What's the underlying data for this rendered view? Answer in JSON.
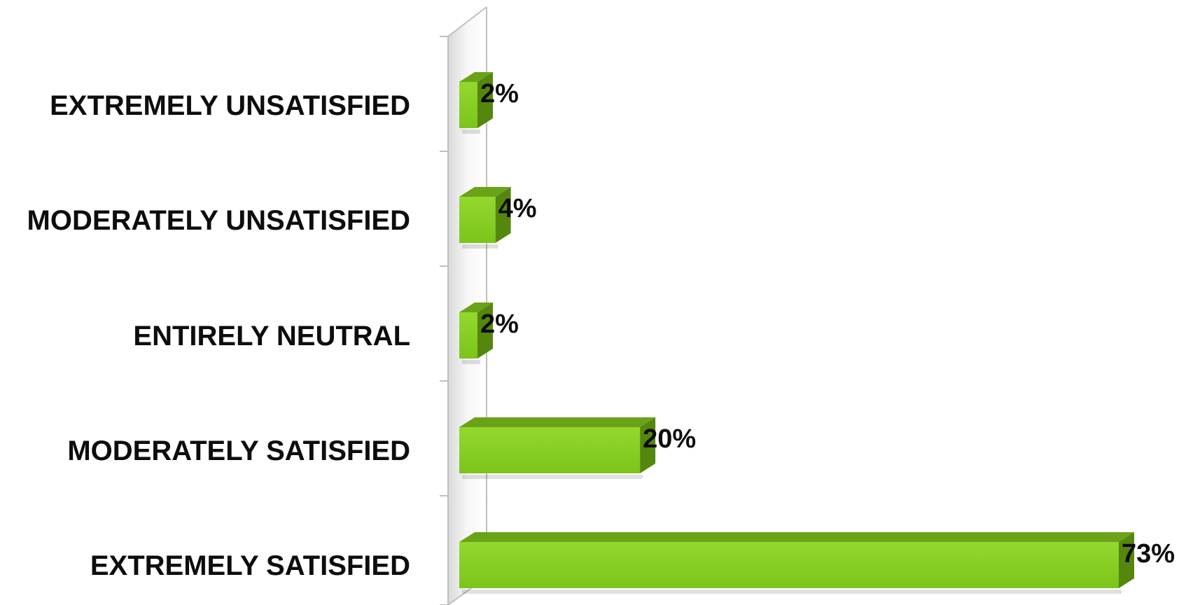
{
  "chart_data": {
    "type": "bar",
    "orientation": "horizontal",
    "style": "3d",
    "categories": [
      "EXTREMELY UNSATISFIED",
      "MODERATELY UNSATISFIED",
      "ENTIRELY NEUTRAL",
      "MODERATELY SATISFIED",
      "EXTREMELY SATISFIED"
    ],
    "values": [
      2,
      4,
      2,
      20,
      73
    ],
    "value_labels": [
      "2%",
      "4%",
      "2%",
      "20%",
      "73%"
    ],
    "unit": "%",
    "title": "",
    "xlabel": "",
    "ylabel": "",
    "xlim": [
      0,
      73
    ],
    "grid": false,
    "legend": "none",
    "colors": {
      "bar_front": "#86cf22",
      "bar_top": "#6aa317",
      "bar_side": "#55870f",
      "text": "#0d0d0d",
      "axis": "#bfbfbf"
    }
  }
}
